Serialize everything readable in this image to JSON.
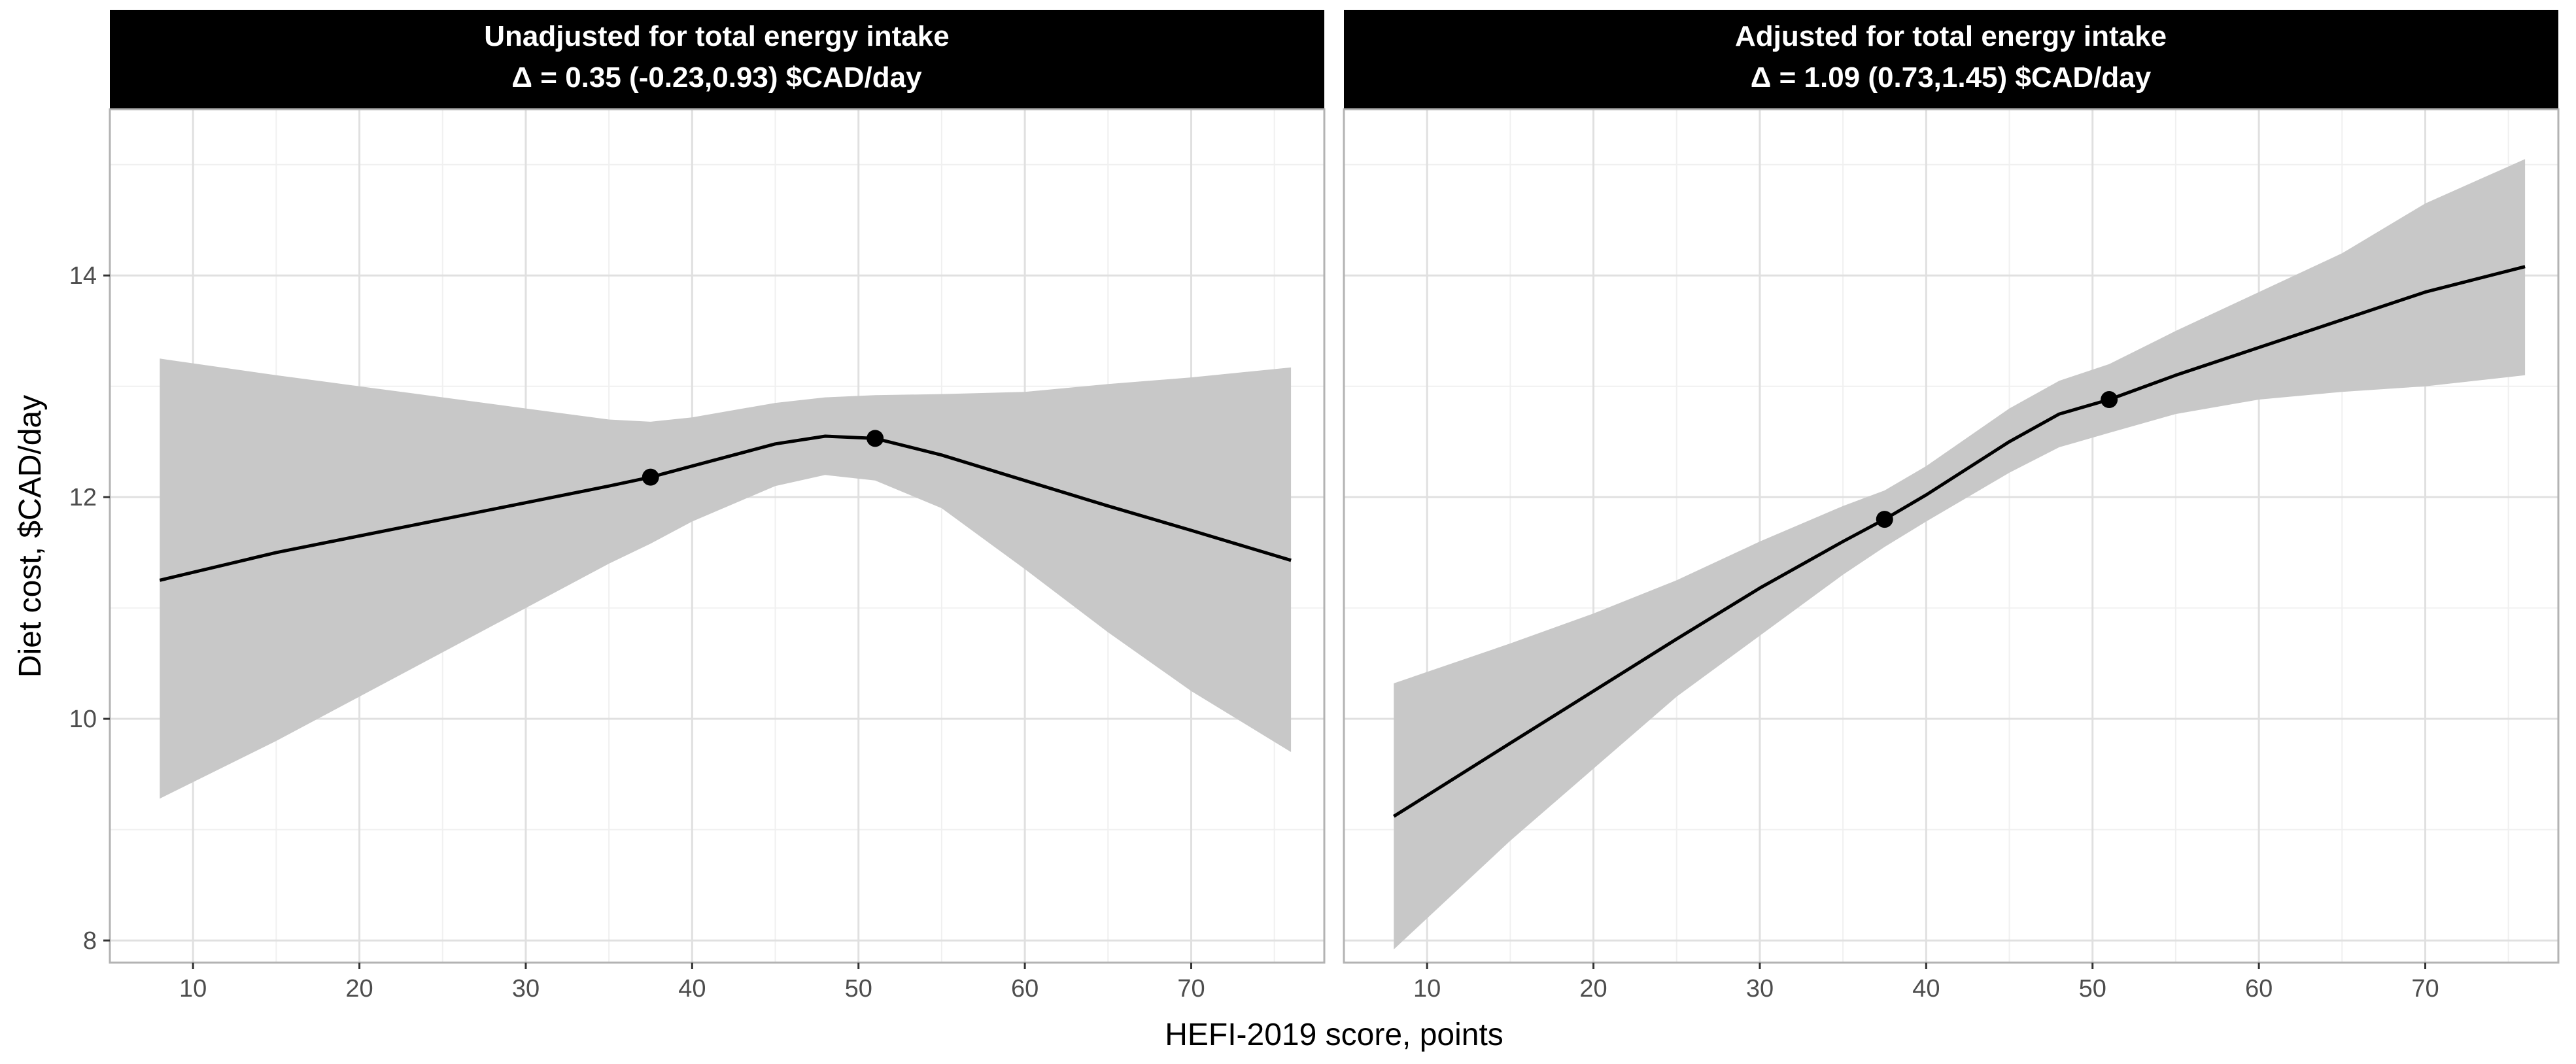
{
  "chart_data": {
    "type": "line",
    "xlabel": "HEFI-2019 score, points",
    "ylabel": "Diet cost, $CAD/day",
    "xlim": [
      5,
      78
    ],
    "ylim": [
      7.8,
      15.5
    ],
    "x_ticks": [
      10,
      20,
      30,
      40,
      50,
      60,
      70
    ],
    "x_tick_labels": [
      "10",
      "20",
      "30",
      "40",
      "50",
      "60",
      "70"
    ],
    "y_ticks": [
      8,
      10,
      12,
      14
    ],
    "y_tick_labels": [
      "8",
      "10",
      "12",
      "14"
    ],
    "grid": true,
    "colors": {
      "strip_bg": "#000000",
      "strip_text": "#ffffff",
      "band": "#c8c8c8",
      "line": "#000000",
      "grid_major": "#e0e0e0",
      "grid_minor": "#f0f0f0",
      "panel_border": "#b3b3b3"
    },
    "panels": [
      {
        "strip_line1": "Unadjusted for total energy intake",
        "strip_line2": "Δ =  0.35 (-0.23,0.93) $CAD/day",
        "series": {
          "x": [
            8,
            15,
            20,
            25,
            30,
            35,
            37.5,
            40,
            45,
            48,
            51,
            55,
            60,
            65,
            70,
            76
          ],
          "y": [
            11.25,
            11.5,
            11.65,
            11.8,
            11.95,
            12.1,
            12.18,
            12.28,
            12.48,
            12.55,
            12.53,
            12.38,
            12.15,
            11.92,
            11.7,
            11.43
          ],
          "lower": [
            9.28,
            9.8,
            10.2,
            10.6,
            11.0,
            11.4,
            11.58,
            11.78,
            12.1,
            12.2,
            12.15,
            11.9,
            11.35,
            10.78,
            10.25,
            9.7
          ],
          "upper": [
            13.25,
            13.1,
            13.0,
            12.9,
            12.8,
            12.7,
            12.68,
            12.72,
            12.85,
            12.9,
            12.92,
            12.93,
            12.95,
            13.02,
            13.08,
            13.17
          ]
        },
        "points": [
          {
            "x": 37.5,
            "y": 12.18
          },
          {
            "x": 51,
            "y": 12.53
          }
        ]
      },
      {
        "strip_line1": "Adjusted for total energy intake",
        "strip_line2": "Δ =  1.09 (0.73,1.45) $CAD/day",
        "series": {
          "x": [
            8,
            15,
            20,
            25,
            30,
            35,
            37.5,
            40,
            45,
            48,
            51,
            55,
            60,
            65,
            70,
            76
          ],
          "y": [
            9.12,
            9.78,
            10.25,
            10.72,
            11.18,
            11.6,
            11.8,
            12.02,
            12.5,
            12.75,
            12.88,
            13.1,
            13.35,
            13.6,
            13.85,
            14.08
          ],
          "lower": [
            7.92,
            8.9,
            9.55,
            10.2,
            10.75,
            11.3,
            11.55,
            11.78,
            12.22,
            12.45,
            12.58,
            12.75,
            12.88,
            12.95,
            13.0,
            13.1
          ],
          "upper": [
            10.32,
            10.68,
            10.95,
            11.25,
            11.6,
            11.92,
            12.06,
            12.28,
            12.8,
            13.05,
            13.2,
            13.5,
            13.85,
            14.2,
            14.65,
            15.05
          ]
        },
        "points": [
          {
            "x": 37.5,
            "y": 11.8
          },
          {
            "x": 51,
            "y": 12.88
          }
        ]
      }
    ]
  }
}
